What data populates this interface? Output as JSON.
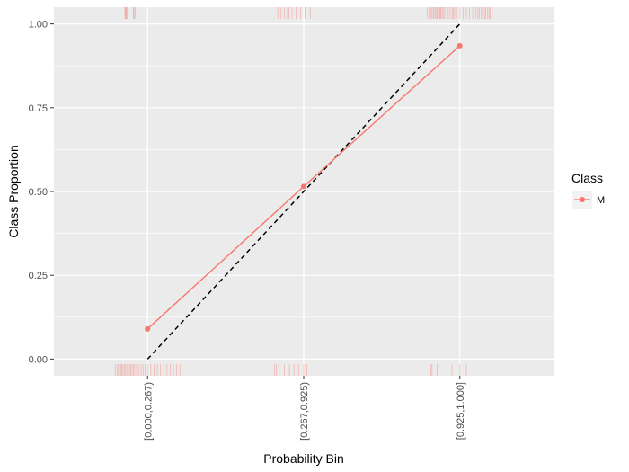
{
  "chart_data": {
    "type": "line",
    "xlabel": "Probability Bin",
    "ylabel": "Class Proportion",
    "categories": [
      "[0.000,0.267)",
      "[0.267,0.925)",
      "[0.925,1.000]"
    ],
    "ylim": [
      -0.05,
      1.05
    ],
    "y_ticks": [
      0.0,
      0.25,
      0.5,
      0.75,
      1.0
    ],
    "y_tick_labels": [
      "0.00",
      "0.25",
      "0.50",
      "0.75",
      "1.00"
    ],
    "series": [
      {
        "name": "M",
        "values": [
          0.09,
          0.515,
          0.935
        ],
        "color": "#f8766d"
      }
    ],
    "reference_line": {
      "from": [
        0,
        0.0
      ],
      "to": [
        2,
        1.0
      ],
      "style": "dashed",
      "color": "#000000"
    },
    "legend": {
      "title": "Class",
      "placement": "right"
    },
    "grid": true,
    "panel_background": "#ebebeb",
    "rug_color": "#f8766d",
    "rug_top": [
      [
        0.15,
        0.16,
        0.165,
        0.175,
        0.19,
        0.28,
        0.29,
        0.31
      ],
      [
        0.1,
        0.12,
        0.15,
        0.2,
        0.25,
        0.27,
        0.32,
        0.38,
        0.45,
        0.52,
        0.6
      ],
      [
        0.0,
        0.03,
        0.05,
        0.07,
        0.09,
        0.1,
        0.12,
        0.14,
        0.15,
        0.17,
        0.19,
        0.2,
        0.21,
        0.23,
        0.25,
        0.27,
        0.3,
        0.32,
        0.35,
        0.38,
        0.4,
        0.42,
        0.45,
        0.5,
        0.55,
        0.6,
        0.65,
        0.7,
        0.75,
        0.78,
        0.8,
        0.83,
        0.85,
        0.88,
        0.9,
        0.93,
        0.95,
        0.97,
        1.0
      ]
    ],
    "rug_bottom": [
      [
        0.0,
        0.03,
        0.05,
        0.07,
        0.09,
        0.1,
        0.12,
        0.14,
        0.16,
        0.18,
        0.2,
        0.22,
        0.24,
        0.26,
        0.28,
        0.3,
        0.33,
        0.36,
        0.4,
        0.43,
        0.46,
        0.5,
        0.55,
        0.6,
        0.65,
        0.7,
        0.75,
        0.8,
        0.85,
        0.9,
        0.95,
        1.0
      ],
      [
        0.05,
        0.08,
        0.12,
        0.2,
        0.28,
        0.35,
        0.42,
        0.5,
        0.55
      ],
      [
        0.05,
        0.07,
        0.15,
        0.3,
        0.38,
        0.5,
        0.6
      ]
    ]
  }
}
